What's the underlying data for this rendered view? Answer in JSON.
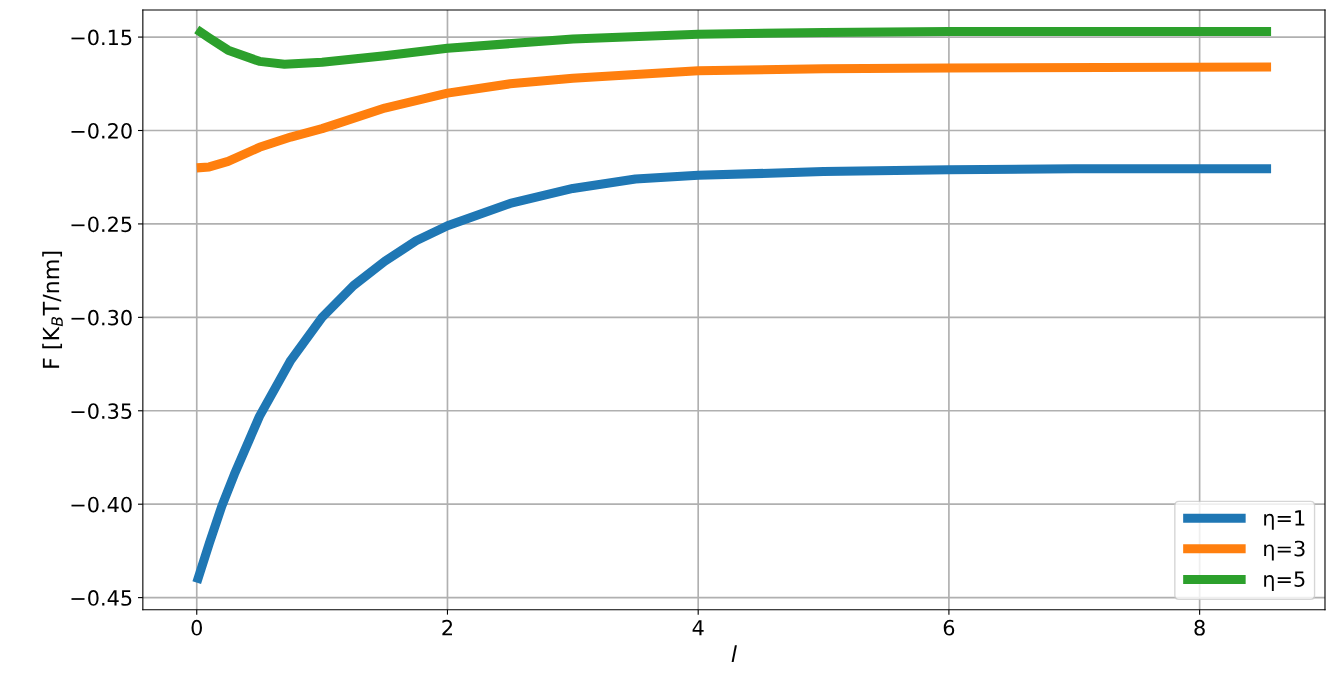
{
  "chart_data": {
    "type": "line",
    "xlabel": "l",
    "ylabel": "F [K$_{B}$T/nm]",
    "xlim": [
      -0.43,
      9.0
    ],
    "xticks": [
      0,
      2,
      4,
      6,
      8
    ],
    "ylim": [
      -0.4565,
      -0.1355
    ],
    "yticks": [
      {
        "value": -0.45,
        "label": "−0.45"
      },
      {
        "value": -0.4,
        "label": "−0.40"
      },
      {
        "value": -0.35,
        "label": "−0.35"
      },
      {
        "value": -0.3,
        "label": "−0.30"
      },
      {
        "value": -0.25,
        "label": "−0.25"
      },
      {
        "value": -0.2,
        "label": "−0.20"
      },
      {
        "value": -0.15,
        "label": "−0.15"
      }
    ],
    "grid": true,
    "legend": "bottom right",
    "line_style": "solid",
    "series": [
      {
        "name": "η=1",
        "color": "#1f77b4",
        "x": [
          0,
          0.1,
          0.2,
          0.3,
          0.5,
          0.75,
          1.0,
          1.25,
          1.5,
          1.75,
          2,
          2.5,
          3,
          3.5,
          4,
          5,
          6,
          7,
          8.57
        ],
        "values": [
          -0.442,
          -0.421,
          -0.401,
          -0.384,
          -0.353,
          -0.323,
          -0.3,
          -0.283,
          -0.27,
          -0.259,
          -0.251,
          -0.239,
          -0.231,
          -0.226,
          -0.224,
          -0.222,
          -0.221,
          -0.2205,
          -0.2205
        ]
      },
      {
        "name": "η=3",
        "color": "#ff7f0e",
        "x": [
          0,
          0.1,
          0.25,
          0.5,
          0.75,
          1.0,
          1.5,
          2,
          2.5,
          3,
          4,
          5,
          6,
          8.57
        ],
        "values": [
          -0.22,
          -0.2195,
          -0.2165,
          -0.209,
          -0.2035,
          -0.199,
          -0.188,
          -0.18,
          -0.175,
          -0.172,
          -0.168,
          -0.167,
          -0.1665,
          -0.166
        ]
      },
      {
        "name": "η=5",
        "color": "#2ca02c",
        "x": [
          0,
          0.1,
          0.25,
          0.5,
          0.7,
          1.0,
          1.5,
          2,
          3,
          4,
          5,
          6,
          8.57
        ],
        "values": [
          -0.146,
          -0.1505,
          -0.157,
          -0.163,
          -0.1645,
          -0.1635,
          -0.16,
          -0.156,
          -0.151,
          -0.1485,
          -0.1475,
          -0.147,
          -0.147
        ]
      }
    ]
  }
}
